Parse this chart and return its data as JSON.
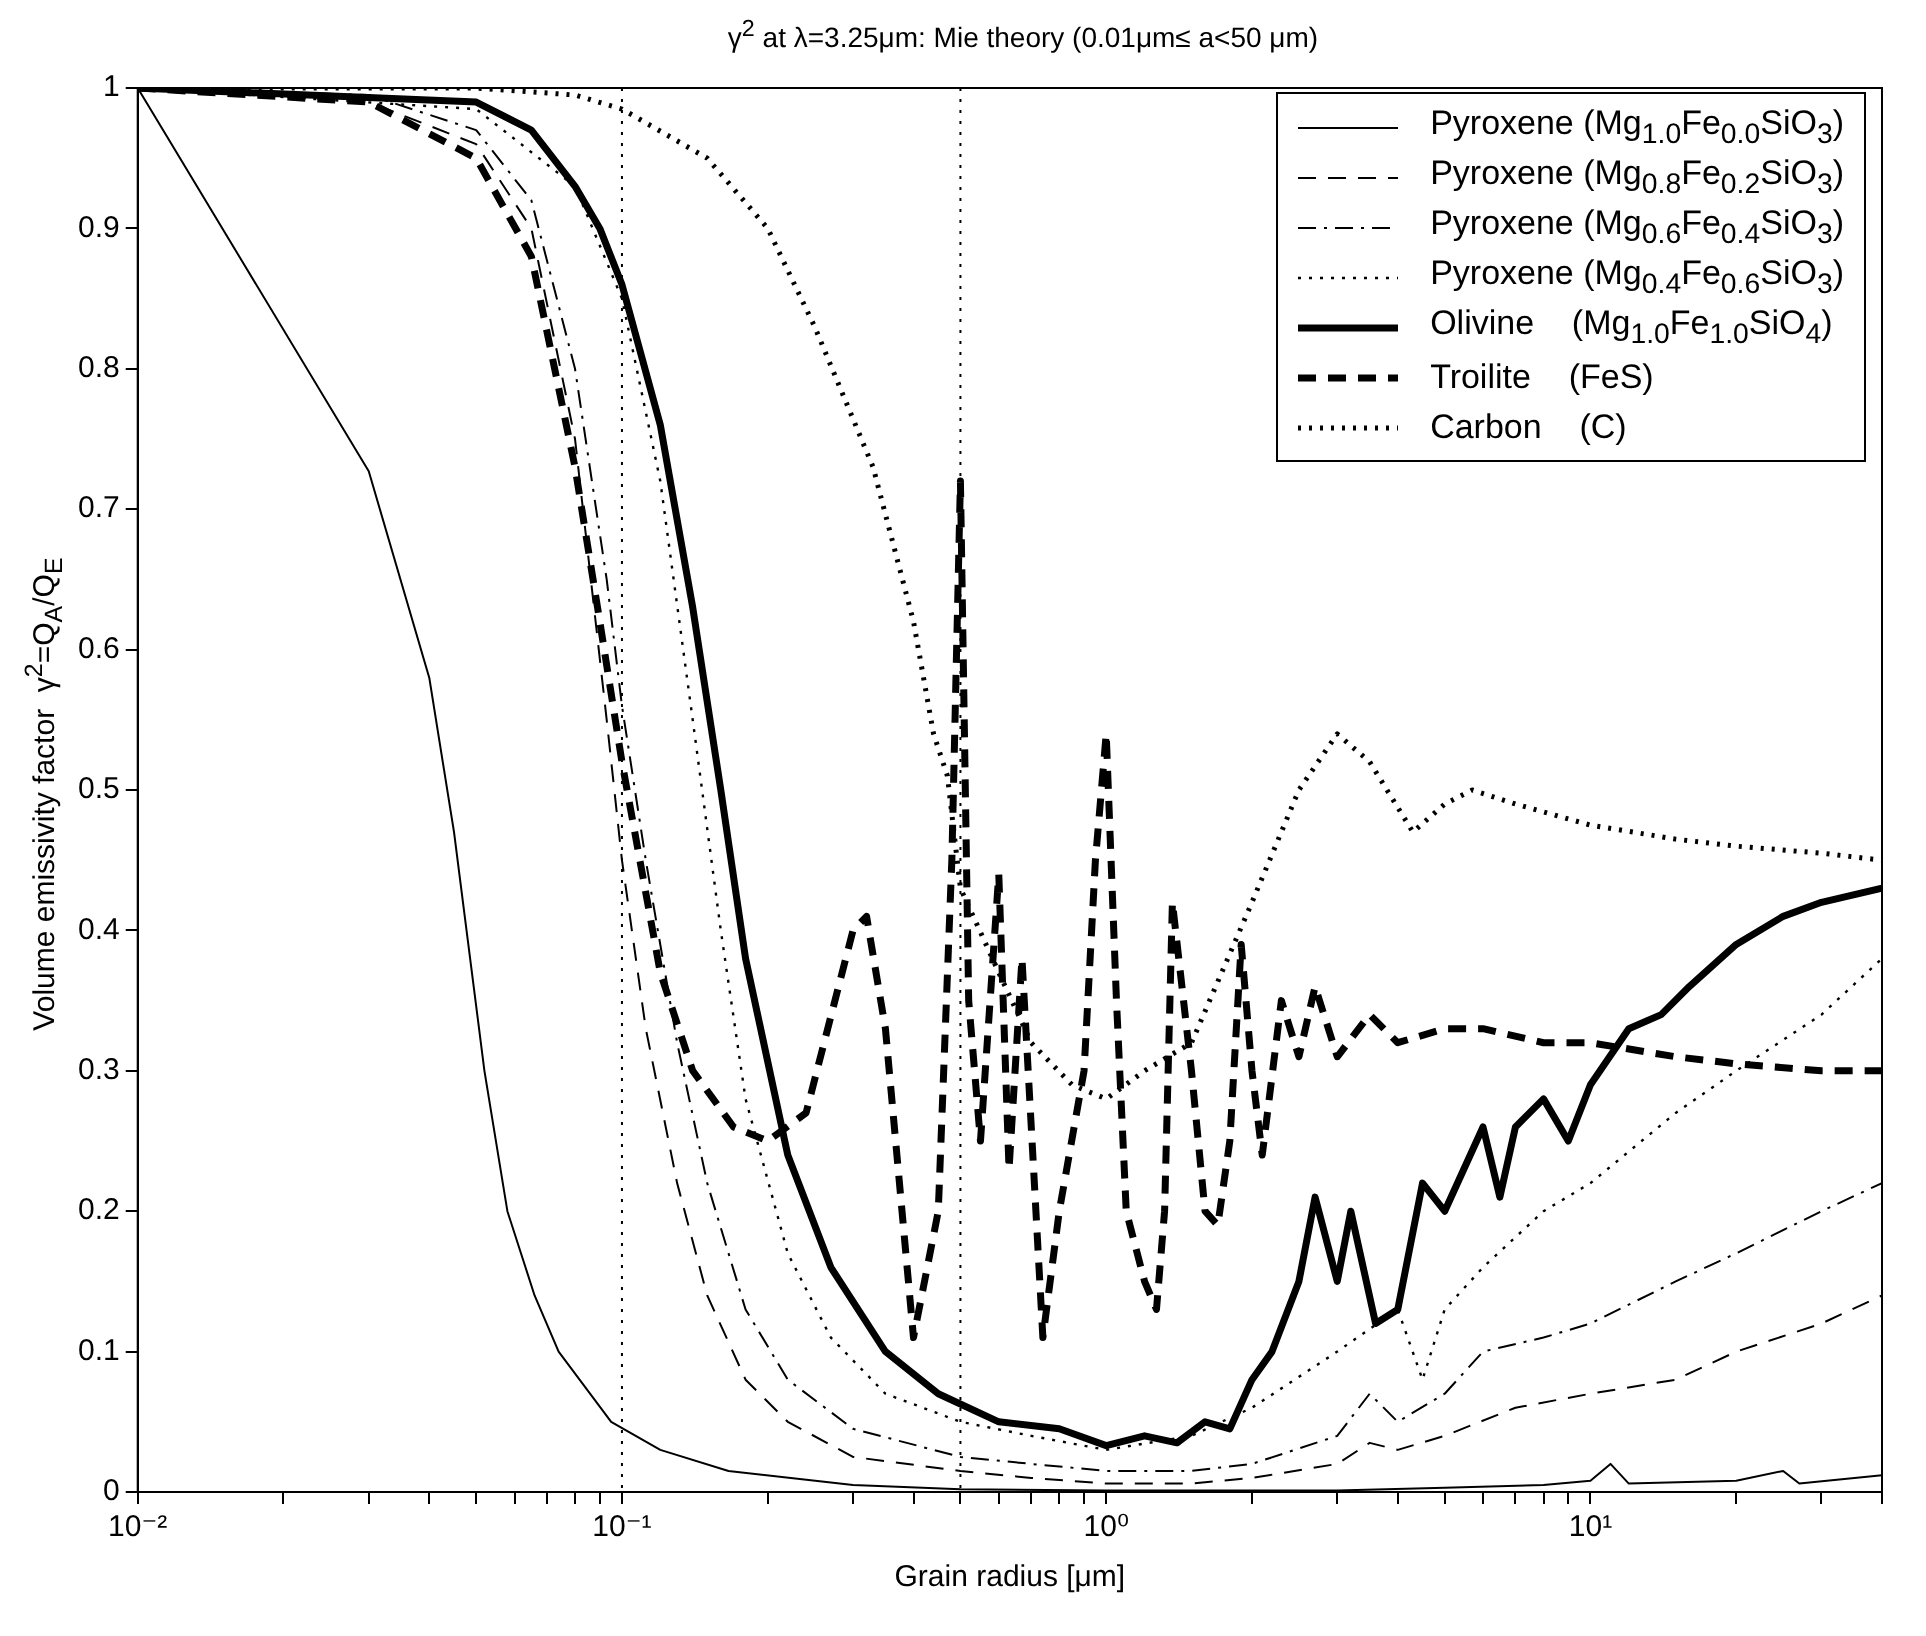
{
  "chart_data": {
    "type": "line",
    "title": "γ$^{2}$ at λ=3.25μm: Mie theory (0.01μm≤ a<50 μm)",
    "xlabel": "Grain radius [μm]",
    "ylabel": "Volume emissivity factor  γ$^{2}$=Q$_{A}$/Q$_{E}$",
    "log": "x",
    "grid": false,
    "legend": "top right",
    "xlim": [
      0.01,
      40
    ],
    "ylim": [
      0,
      1
    ],
    "xticks": [
      {
        "value": 0.01,
        "label": "10⁻²"
      },
      {
        "value": 0.02,
        "label": null
      },
      {
        "value": 0.03,
        "label": null
      },
      {
        "value": 0.04,
        "label": null
      },
      {
        "value": 0.05,
        "label": null
      },
      {
        "value": 0.06,
        "label": null
      },
      {
        "value": 0.07,
        "label": null
      },
      {
        "value": 0.08,
        "label": null
      },
      {
        "value": 0.09,
        "label": null
      },
      {
        "value": 0.1,
        "label": "10⁻¹"
      },
      {
        "value": 0.2,
        "label": null
      },
      {
        "value": 0.3,
        "label": null
      },
      {
        "value": 0.4,
        "label": null
      },
      {
        "value": 0.5,
        "label": null
      },
      {
        "value": 0.6,
        "label": null
      },
      {
        "value": 0.7,
        "label": null
      },
      {
        "value": 0.8,
        "label": null
      },
      {
        "value": 0.9,
        "label": null
      },
      {
        "value": 1,
        "label": "10⁰"
      },
      {
        "value": 2,
        "label": null
      },
      {
        "value": 3,
        "label": null
      },
      {
        "value": 4,
        "label": null
      },
      {
        "value": 5,
        "label": null
      },
      {
        "value": 6,
        "label": null
      },
      {
        "value": 7,
        "label": null
      },
      {
        "value": 8,
        "label": null
      },
      {
        "value": 9,
        "label": null
      },
      {
        "value": 10,
        "label": "10¹"
      },
      {
        "value": 20,
        "label": null
      },
      {
        "value": 30,
        "label": null
      },
      {
        "value": 40,
        "label": null
      }
    ],
    "yticks": [
      0,
      0.1,
      0.2,
      0.3,
      0.4,
      0.5,
      0.6,
      0.7,
      0.8,
      0.9,
      1
    ],
    "ref_lines": [
      {
        "axis": "x",
        "value": 0.1,
        "line_style": "dotted",
        "color": "#000000"
      },
      {
        "axis": "x",
        "value": 0.5,
        "line_style": "dotted",
        "color": "#000000"
      }
    ],
    "series": [
      {
        "name": "Pyroxene (Mg$_{1.0}$Fe$_{0.0}$SiO$_{3}$)",
        "color": "#000000",
        "line_style": "solid",
        "x": [
          0.01,
          0.03,
          0.04,
          0.045,
          0.052,
          0.058,
          0.066,
          0.074,
          0.095,
          0.12,
          0.166,
          0.3,
          0.5,
          1,
          3,
          5,
          8,
          10,
          11,
          12,
          20,
          25,
          27,
          40
        ],
        "values": [
          1,
          0.727,
          0.58,
          0.47,
          0.3,
          0.2,
          0.14,
          0.1,
          0.05,
          0.03,
          0.015,
          0.005,
          0.002,
          0.001,
          0.001,
          0.003,
          0.005,
          0.008,
          0.02,
          0.006,
          0.008,
          0.015,
          0.006,
          0.012
        ]
      },
      {
        "name": "Pyroxene (Mg$_{0.8}$Fe$_{0.2}$SiO$_{3}$)",
        "color": "#000000",
        "line_style": "dashed",
        "x": [
          0.01,
          0.03,
          0.05,
          0.065,
          0.08,
          0.093,
          0.1,
          0.112,
          0.13,
          0.15,
          0.18,
          0.22,
          0.3,
          0.5,
          0.7,
          1,
          1.5,
          2,
          3,
          3.5,
          4,
          5,
          7,
          10,
          15,
          20,
          30,
          40
        ],
        "values": [
          1,
          0.99,
          0.96,
          0.9,
          0.75,
          0.55,
          0.45,
          0.33,
          0.22,
          0.14,
          0.08,
          0.05,
          0.025,
          0.015,
          0.01,
          0.006,
          0.006,
          0.01,
          0.02,
          0.035,
          0.03,
          0.04,
          0.06,
          0.07,
          0.08,
          0.1,
          0.12,
          0.14
        ]
      },
      {
        "name": "Pyroxene (Mg$_{0.6}$Fe$_{0.4}$SiO$_{3}$)",
        "color": "#000000",
        "line_style": "dashdot",
        "x": [
          0.01,
          0.03,
          0.05,
          0.065,
          0.08,
          0.093,
          0.1,
          0.112,
          0.13,
          0.15,
          0.18,
          0.22,
          0.3,
          0.5,
          0.7,
          1,
          1.5,
          2,
          3,
          3.5,
          4,
          5,
          6,
          8,
          10,
          15,
          20,
          30,
          40
        ],
        "values": [
          1,
          0.995,
          0.97,
          0.92,
          0.8,
          0.65,
          0.56,
          0.45,
          0.32,
          0.22,
          0.13,
          0.08,
          0.045,
          0.025,
          0.02,
          0.015,
          0.015,
          0.02,
          0.04,
          0.07,
          0.05,
          0.07,
          0.1,
          0.11,
          0.12,
          0.15,
          0.17,
          0.2,
          0.22
        ]
      },
      {
        "name": "Pyroxene (Mg$_{0.4}$Fe$_{0.6}$SiO$_{3}$)",
        "color": "#000000",
        "line_style": "dotted",
        "x": [
          0.01,
          0.05,
          0.08,
          0.1,
          0.12,
          0.14,
          0.16,
          0.18,
          0.22,
          0.27,
          0.35,
          0.5,
          0.7,
          1,
          1.5,
          2,
          3,
          4,
          4.5,
          5,
          6,
          8,
          10,
          15,
          20,
          30,
          40
        ],
        "values": [
          1,
          0.985,
          0.93,
          0.85,
          0.72,
          0.55,
          0.4,
          0.28,
          0.17,
          0.11,
          0.07,
          0.05,
          0.04,
          0.03,
          0.04,
          0.06,
          0.1,
          0.13,
          0.08,
          0.13,
          0.16,
          0.2,
          0.22,
          0.27,
          0.3,
          0.34,
          0.38
        ]
      },
      {
        "name": "Olivine    (Mg$_{1.0}$Fe$_{1.0}$SiO$_{4}$)",
        "color": "#000000",
        "line_style": "solid",
        "x": [
          0.01,
          0.05,
          0.065,
          0.08,
          0.09,
          0.1,
          0.12,
          0.14,
          0.16,
          0.18,
          0.22,
          0.27,
          0.35,
          0.45,
          0.6,
          0.8,
          1,
          1.2,
          1.4,
          1.6,
          1.8,
          2,
          2.2,
          2.5,
          2.7,
          3,
          3.2,
          3.6,
          4,
          4.5,
          5,
          6,
          6.5,
          7,
          8,
          9,
          10,
          12,
          14,
          16,
          20,
          25,
          30,
          40
        ],
        "values": [
          1,
          0.99,
          0.97,
          0.93,
          0.9,
          0.86,
          0.76,
          0.63,
          0.5,
          0.38,
          0.24,
          0.16,
          0.1,
          0.07,
          0.05,
          0.045,
          0.033,
          0.04,
          0.035,
          0.05,
          0.045,
          0.08,
          0.1,
          0.15,
          0.21,
          0.15,
          0.2,
          0.12,
          0.13,
          0.22,
          0.2,
          0.26,
          0.21,
          0.26,
          0.28,
          0.25,
          0.29,
          0.33,
          0.34,
          0.36,
          0.39,
          0.41,
          0.42,
          0.43
        ]
      },
      {
        "name": "Troilite    (FeS)",
        "color": "#000000",
        "line_style": "dashed",
        "x": [
          0.01,
          0.03,
          0.05,
          0.065,
          0.08,
          0.09,
          0.1,
          0.12,
          0.14,
          0.17,
          0.2,
          0.24,
          0.3,
          0.32,
          0.35,
          0.4,
          0.45,
          0.48,
          0.5,
          0.52,
          0.55,
          0.6,
          0.63,
          0.67,
          0.74,
          0.8,
          0.9,
          0.95,
          1,
          1.05,
          1.1,
          1.2,
          1.27,
          1.32,
          1.37,
          1.5,
          1.6,
          1.7,
          1.8,
          1.9,
          2,
          2.1,
          2.3,
          2.5,
          2.7,
          3,
          3.5,
          4,
          5,
          6,
          8,
          10,
          15,
          20,
          30,
          40
        ],
        "values": [
          1,
          0.99,
          0.95,
          0.88,
          0.73,
          0.62,
          0.52,
          0.37,
          0.3,
          0.26,
          0.25,
          0.27,
          0.4,
          0.41,
          0.33,
          0.11,
          0.2,
          0.45,
          0.72,
          0.35,
          0.25,
          0.44,
          0.23,
          0.38,
          0.11,
          0.2,
          0.3,
          0.45,
          0.54,
          0.35,
          0.2,
          0.15,
          0.13,
          0.2,
          0.42,
          0.3,
          0.2,
          0.19,
          0.25,
          0.39,
          0.3,
          0.24,
          0.35,
          0.31,
          0.36,
          0.31,
          0.34,
          0.32,
          0.33,
          0.33,
          0.32,
          0.32,
          0.31,
          0.305,
          0.3,
          0.3
        ]
      },
      {
        "name": "Carbon    (C)",
        "color": "#000000",
        "line_style": "dotted",
        "x": [
          0.01,
          0.05,
          0.08,
          0.1,
          0.15,
          0.2,
          0.25,
          0.33,
          0.4,
          0.44,
          0.47,
          0.5,
          0.6,
          0.7,
          0.85,
          1,
          1.2,
          1.5,
          2,
          2.5,
          3,
          3.5,
          4.3,
          5,
          5.7,
          7,
          10,
          15,
          20,
          30,
          40
        ],
        "values": [
          1,
          1,
          0.995,
          0.985,
          0.95,
          0.9,
          0.83,
          0.73,
          0.62,
          0.54,
          0.51,
          0.43,
          0.37,
          0.32,
          0.29,
          0.28,
          0.3,
          0.32,
          0.42,
          0.5,
          0.54,
          0.52,
          0.47,
          0.49,
          0.5,
          0.49,
          0.475,
          0.465,
          0.46,
          0.455,
          0.45
        ]
      }
    ]
  }
}
